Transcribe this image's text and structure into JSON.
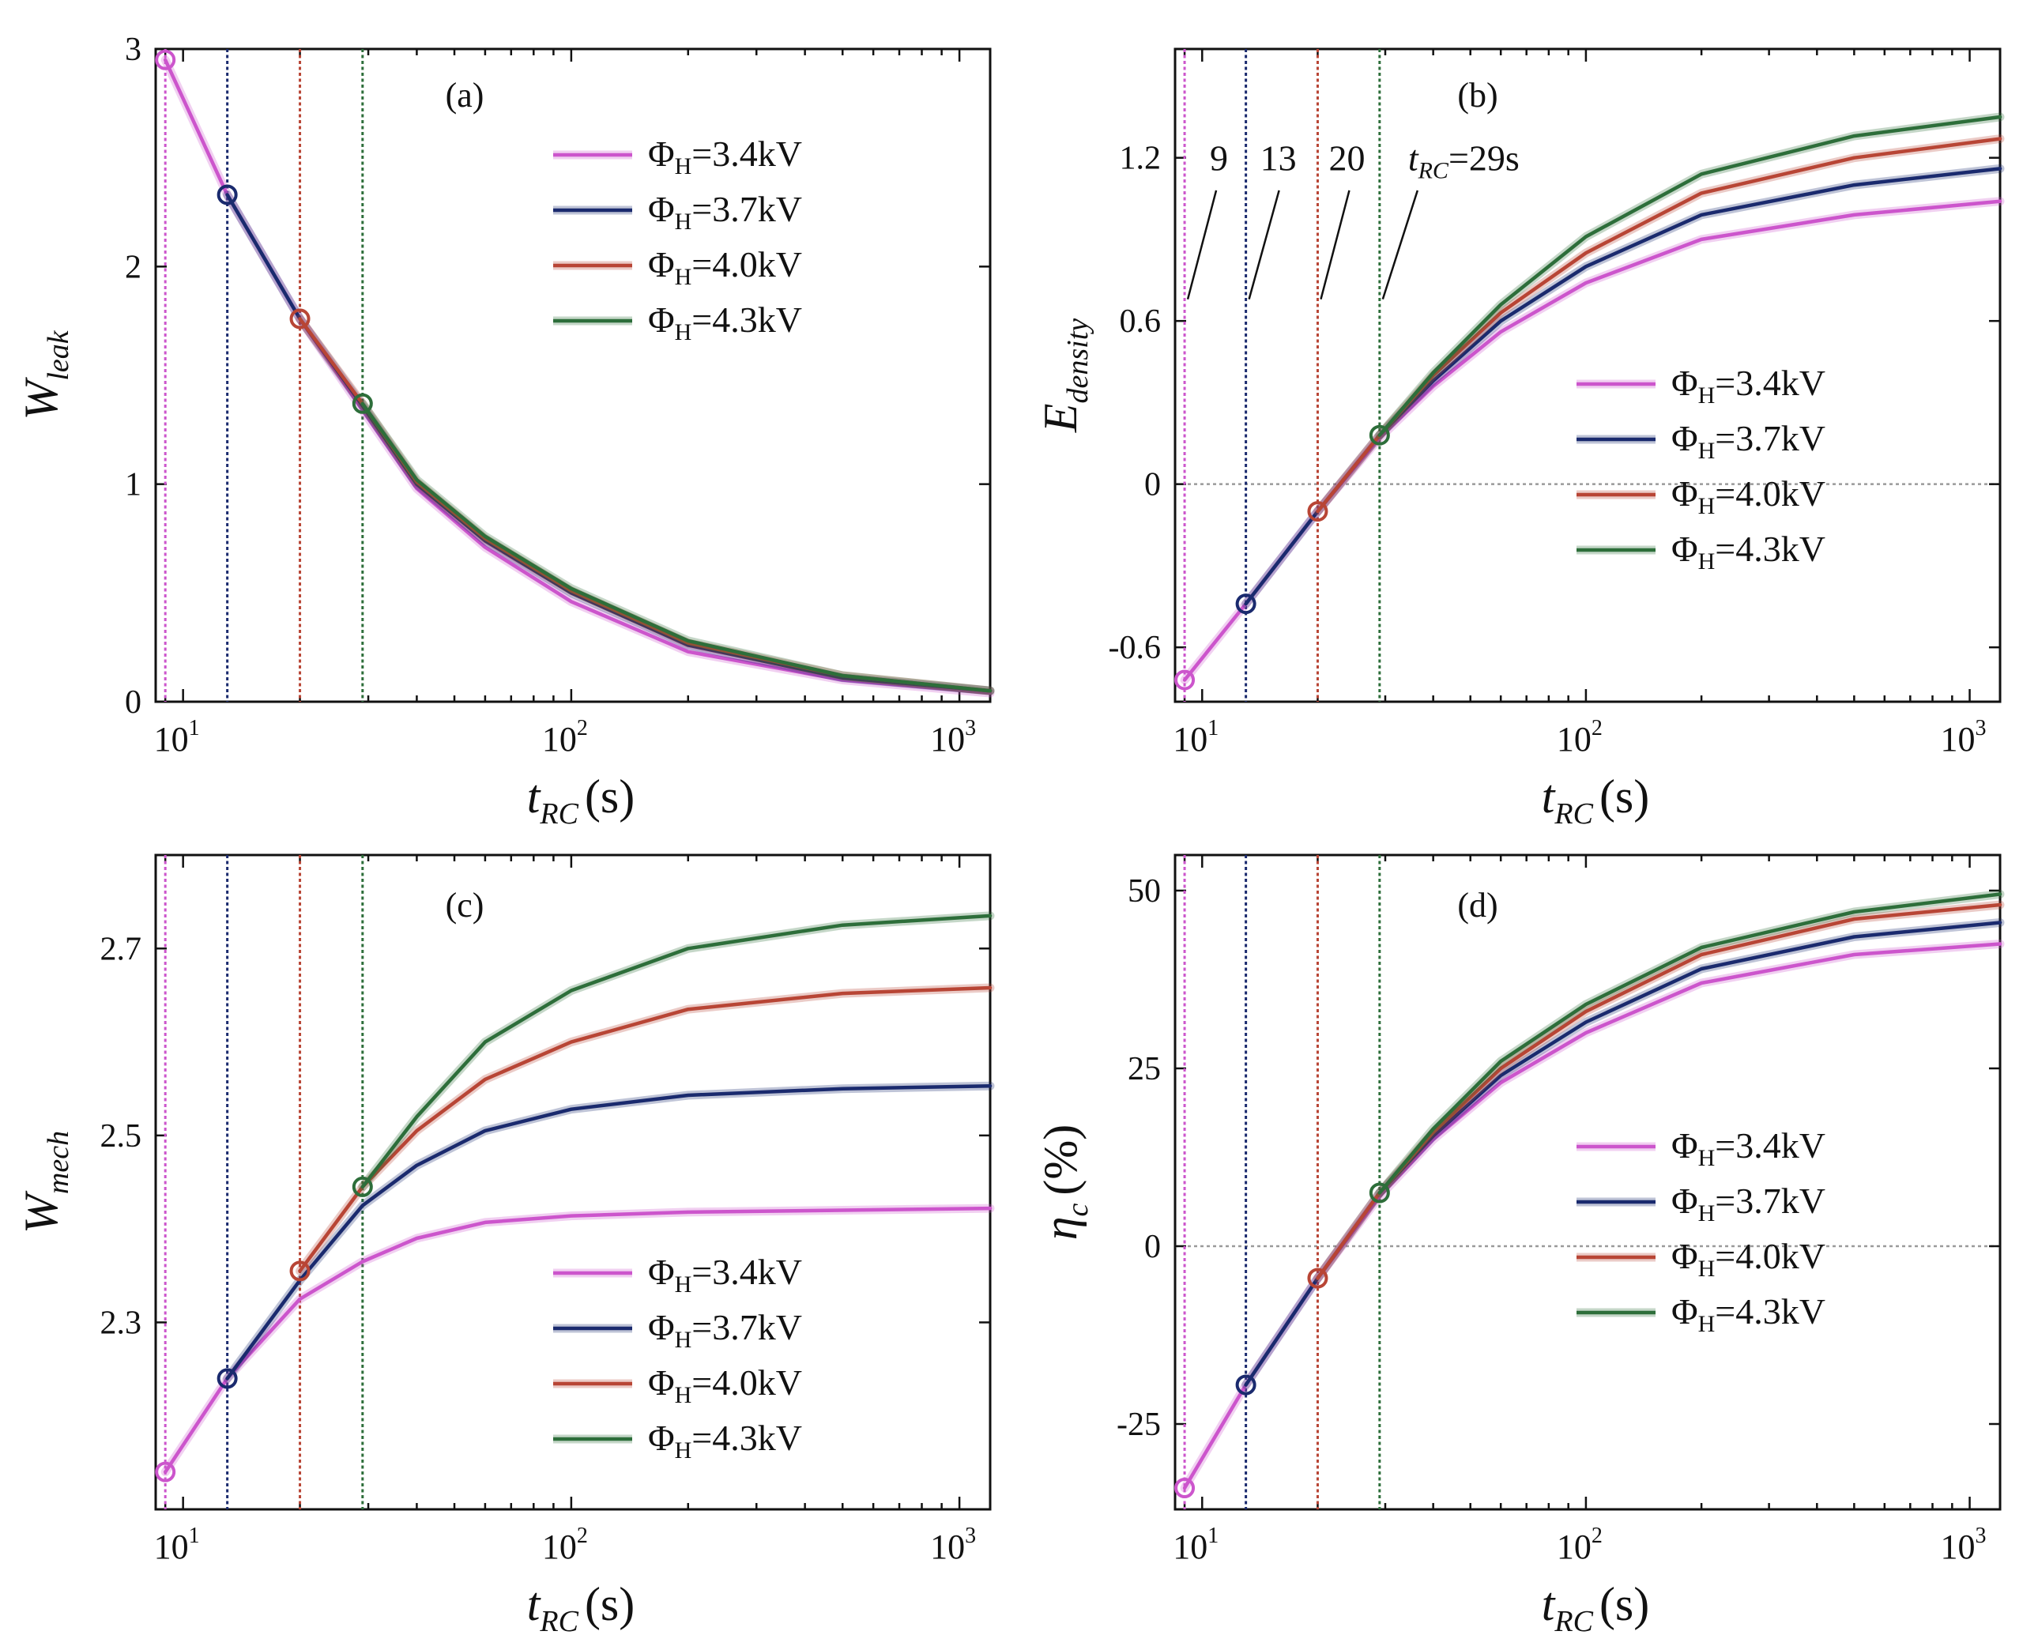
{
  "chart_data": [
    {
      "panel": "a",
      "type": "line",
      "panel_label": "(a)",
      "ylabel_main": "W",
      "ylabel_sub": "leak",
      "ylabel_suffix": "",
      "xlabel_main": "t",
      "xlabel_sub": "RC",
      "xlabel_suffix": "(s)",
      "xscale": "log",
      "xlim": [
        8.5,
        1200
      ],
      "ylim": [
        0,
        3
      ],
      "yticks": [
        0,
        1,
        2,
        3
      ],
      "ytick_labels": [
        "0",
        "1",
        "2",
        "3"
      ],
      "xticks": [
        10,
        100,
        1000
      ],
      "xtick_base": "10",
      "xtick_exps": [
        "1",
        "2",
        "3"
      ],
      "zero_line": false,
      "legend_position": "upper-right",
      "series": [
        {
          "name": "ΦH=3.4kV",
          "legend_main": "Φ",
          "legend_sub": "H",
          "legend_rest": "=3.4kV",
          "color": "#cc55cc",
          "start": 9,
          "x": [
            9,
            13,
            20,
            29,
            40,
            60,
            100,
            200,
            500,
            1200
          ],
          "y": [
            2.95,
            2.33,
            1.76,
            1.34,
            0.98,
            0.71,
            0.46,
            0.23,
            0.1,
            0.04
          ]
        },
        {
          "name": "ΦH=3.7kV",
          "legend_main": "Φ",
          "legend_sub": "H",
          "legend_rest": "=3.7kV",
          "color": "#1a2a6e",
          "start": 13,
          "x": [
            13,
            20,
            29,
            40,
            60,
            100,
            200,
            500,
            1200
          ],
          "y": [
            2.33,
            1.76,
            1.36,
            1.0,
            0.74,
            0.5,
            0.26,
            0.11,
            0.05
          ]
        },
        {
          "name": "ΦH=4.0kV",
          "legend_main": "Φ",
          "legend_sub": "H",
          "legend_rest": "=4.0kV",
          "color": "#b84535",
          "start": 20,
          "x": [
            20,
            29,
            40,
            60,
            100,
            200,
            500,
            1200
          ],
          "y": [
            1.76,
            1.37,
            1.01,
            0.75,
            0.51,
            0.27,
            0.12,
            0.05
          ]
        },
        {
          "name": "ΦH=4.3kV",
          "legend_main": "Φ",
          "legend_sub": "H",
          "legend_rest": "=4.3kV",
          "color": "#2d6e3a",
          "start": 29,
          "x": [
            29,
            40,
            60,
            100,
            200,
            500,
            1200
          ],
          "y": [
            1.37,
            1.02,
            0.76,
            0.52,
            0.28,
            0.12,
            0.05
          ]
        }
      ]
    },
    {
      "panel": "b",
      "type": "line",
      "panel_label": "(b)",
      "ylabel_main": "E",
      "ylabel_sub": "density",
      "ylabel_suffix": "",
      "xlabel_main": "t",
      "xlabel_sub": "RC",
      "xlabel_suffix": "(s)",
      "xscale": "log",
      "xlim": [
        8.5,
        1200
      ],
      "ylim": [
        -0.8,
        1.6
      ],
      "yticks": [
        -0.6,
        0,
        0.6,
        1.2
      ],
      "ytick_labels": [
        "-0.6",
        "0",
        "0.6",
        "1.2"
      ],
      "xticks": [
        10,
        100,
        1000
      ],
      "xtick_base": "10",
      "xtick_exps": [
        "1",
        "2",
        "3"
      ],
      "zero_line": true,
      "legend_position": "center-right",
      "annotations": {
        "a9": "9",
        "a13": "13",
        "a20": "20",
        "a29_main": "t",
        "a29_sub": "RC",
        "a29_rest": "=29s"
      },
      "series": [
        {
          "name": "ΦH=3.4kV",
          "legend_main": "Φ",
          "legend_sub": "H",
          "legend_rest": "=3.4kV",
          "color": "#cc55cc",
          "start": 9,
          "x": [
            9,
            13,
            20,
            29,
            40,
            60,
            100,
            200,
            500,
            1200
          ],
          "y": [
            -0.72,
            -0.44,
            -0.1,
            0.17,
            0.36,
            0.56,
            0.74,
            0.9,
            0.99,
            1.04
          ]
        },
        {
          "name": "ΦH=3.7kV",
          "legend_main": "Φ",
          "legend_sub": "H",
          "legend_rest": "=3.7kV",
          "color": "#1a2a6e",
          "start": 13,
          "x": [
            13,
            20,
            29,
            40,
            60,
            100,
            200,
            500,
            1200
          ],
          "y": [
            -0.44,
            -0.1,
            0.18,
            0.38,
            0.6,
            0.8,
            0.99,
            1.1,
            1.16
          ]
        },
        {
          "name": "ΦH=4.0kV",
          "legend_main": "Φ",
          "legend_sub": "H",
          "legend_rest": "=4.0kV",
          "color": "#b84535",
          "start": 20,
          "x": [
            20,
            29,
            40,
            60,
            100,
            200,
            500,
            1200
          ],
          "y": [
            -0.1,
            0.18,
            0.4,
            0.63,
            0.85,
            1.07,
            1.2,
            1.27
          ]
        },
        {
          "name": "ΦH=4.3kV",
          "legend_main": "Φ",
          "legend_sub": "H",
          "legend_rest": "=4.3kV",
          "color": "#2d6e3a",
          "start": 29,
          "x": [
            29,
            40,
            60,
            100,
            200,
            500,
            1200
          ],
          "y": [
            0.18,
            0.41,
            0.66,
            0.91,
            1.14,
            1.28,
            1.35
          ]
        }
      ]
    },
    {
      "panel": "c",
      "type": "line",
      "panel_label": "(c)",
      "ylabel_main": "W",
      "ylabel_sub": "mech",
      "ylabel_suffix": "",
      "xlabel_main": "t",
      "xlabel_sub": "RC",
      "xlabel_suffix": "(s)",
      "xscale": "log",
      "xlim": [
        8.5,
        1200
      ],
      "ylim": [
        2.1,
        2.8
      ],
      "yticks": [
        2.3,
        2.5,
        2.7
      ],
      "ytick_labels": [
        "2.3",
        "2.5",
        "2.7"
      ],
      "xticks": [
        10,
        100,
        1000
      ],
      "xtick_base": "10",
      "xtick_exps": [
        "1",
        "2",
        "3"
      ],
      "zero_line": false,
      "legend_position": "lower-right",
      "series": [
        {
          "name": "ΦH=3.4kV",
          "legend_main": "Φ",
          "legend_sub": "H",
          "legend_rest": "=3.4kV",
          "color": "#cc55cc",
          "start": 9,
          "x": [
            9,
            13,
            20,
            29,
            40,
            60,
            100,
            200,
            500,
            1200
          ],
          "y": [
            2.14,
            2.24,
            2.325,
            2.365,
            2.39,
            2.407,
            2.414,
            2.418,
            2.42,
            2.422
          ]
        },
        {
          "name": "ΦH=3.7kV",
          "legend_main": "Φ",
          "legend_sub": "H",
          "legend_rest": "=3.7kV",
          "color": "#1a2a6e",
          "start": 13,
          "x": [
            13,
            20,
            29,
            40,
            60,
            100,
            200,
            500,
            1200
          ],
          "y": [
            2.24,
            2.345,
            2.425,
            2.468,
            2.505,
            2.528,
            2.543,
            2.55,
            2.553
          ]
        },
        {
          "name": "ΦH=4.0kV",
          "legend_main": "Φ",
          "legend_sub": "H",
          "legend_rest": "=4.0kV",
          "color": "#b84535",
          "start": 20,
          "x": [
            20,
            29,
            40,
            60,
            100,
            200,
            500,
            1200
          ],
          "y": [
            2.355,
            2.445,
            2.505,
            2.56,
            2.6,
            2.635,
            2.652,
            2.658
          ]
        },
        {
          "name": "ΦH=4.3kV",
          "legend_main": "Φ",
          "legend_sub": "H",
          "legend_rest": "=4.3kV",
          "color": "#2d6e3a",
          "start": 29,
          "x": [
            29,
            40,
            60,
            100,
            200,
            500,
            1200
          ],
          "y": [
            2.445,
            2.52,
            2.6,
            2.655,
            2.7,
            2.725,
            2.735
          ]
        }
      ]
    },
    {
      "panel": "d",
      "type": "line",
      "panel_label": "(d)",
      "ylabel_main": "η",
      "ylabel_sub": "c",
      "ylabel_suffix": "(%)",
      "xlabel_main": "t",
      "xlabel_sub": "RC",
      "xlabel_suffix": "(s)",
      "xscale": "log",
      "xlim": [
        8.5,
        1200
      ],
      "ylim": [
        -37,
        55
      ],
      "yticks": [
        -25,
        0,
        25,
        50
      ],
      "ytick_labels": [
        "-25",
        "0",
        "25",
        "50"
      ],
      "xticks": [
        10,
        100,
        1000
      ],
      "xtick_base": "10",
      "xtick_exps": [
        "1",
        "2",
        "3"
      ],
      "zero_line": true,
      "legend_position": "center-right",
      "series": [
        {
          "name": "ΦH=3.4kV",
          "legend_main": "Φ",
          "legend_sub": "H",
          "legend_rest": "=3.4kV",
          "color": "#cc55cc",
          "start": 9,
          "x": [
            9,
            13,
            20,
            29,
            40,
            60,
            100,
            200,
            500,
            1200
          ],
          "y": [
            -34,
            -19.5,
            -4.5,
            7,
            15,
            23,
            30,
            37,
            41,
            42.5
          ]
        },
        {
          "name": "ΦH=3.7kV",
          "legend_main": "Φ",
          "legend_sub": "H",
          "legend_rest": "=3.7kV",
          "color": "#1a2a6e",
          "start": 13,
          "x": [
            13,
            20,
            29,
            40,
            60,
            100,
            200,
            500,
            1200
          ],
          "y": [
            -19.5,
            -4.5,
            7.5,
            15.5,
            24,
            31.5,
            39,
            43.5,
            45.5
          ]
        },
        {
          "name": "ΦH=4.0kV",
          "legend_main": "Φ",
          "legend_sub": "H",
          "legend_rest": "=4.0kV",
          "color": "#b84535",
          "start": 20,
          "x": [
            20,
            29,
            40,
            60,
            100,
            200,
            500,
            1200
          ],
          "y": [
            -4.5,
            7.5,
            16,
            25,
            33,
            41,
            46,
            48
          ]
        },
        {
          "name": "ΦH=4.3kV",
          "legend_main": "Φ",
          "legend_sub": "H",
          "legend_rest": "=4.3kV",
          "color": "#2d6e3a",
          "start": 29,
          "x": [
            29,
            40,
            60,
            100,
            200,
            500,
            1200
          ],
          "y": [
            7.5,
            16.5,
            26,
            34,
            42,
            47,
            49.5
          ]
        }
      ]
    }
  ]
}
